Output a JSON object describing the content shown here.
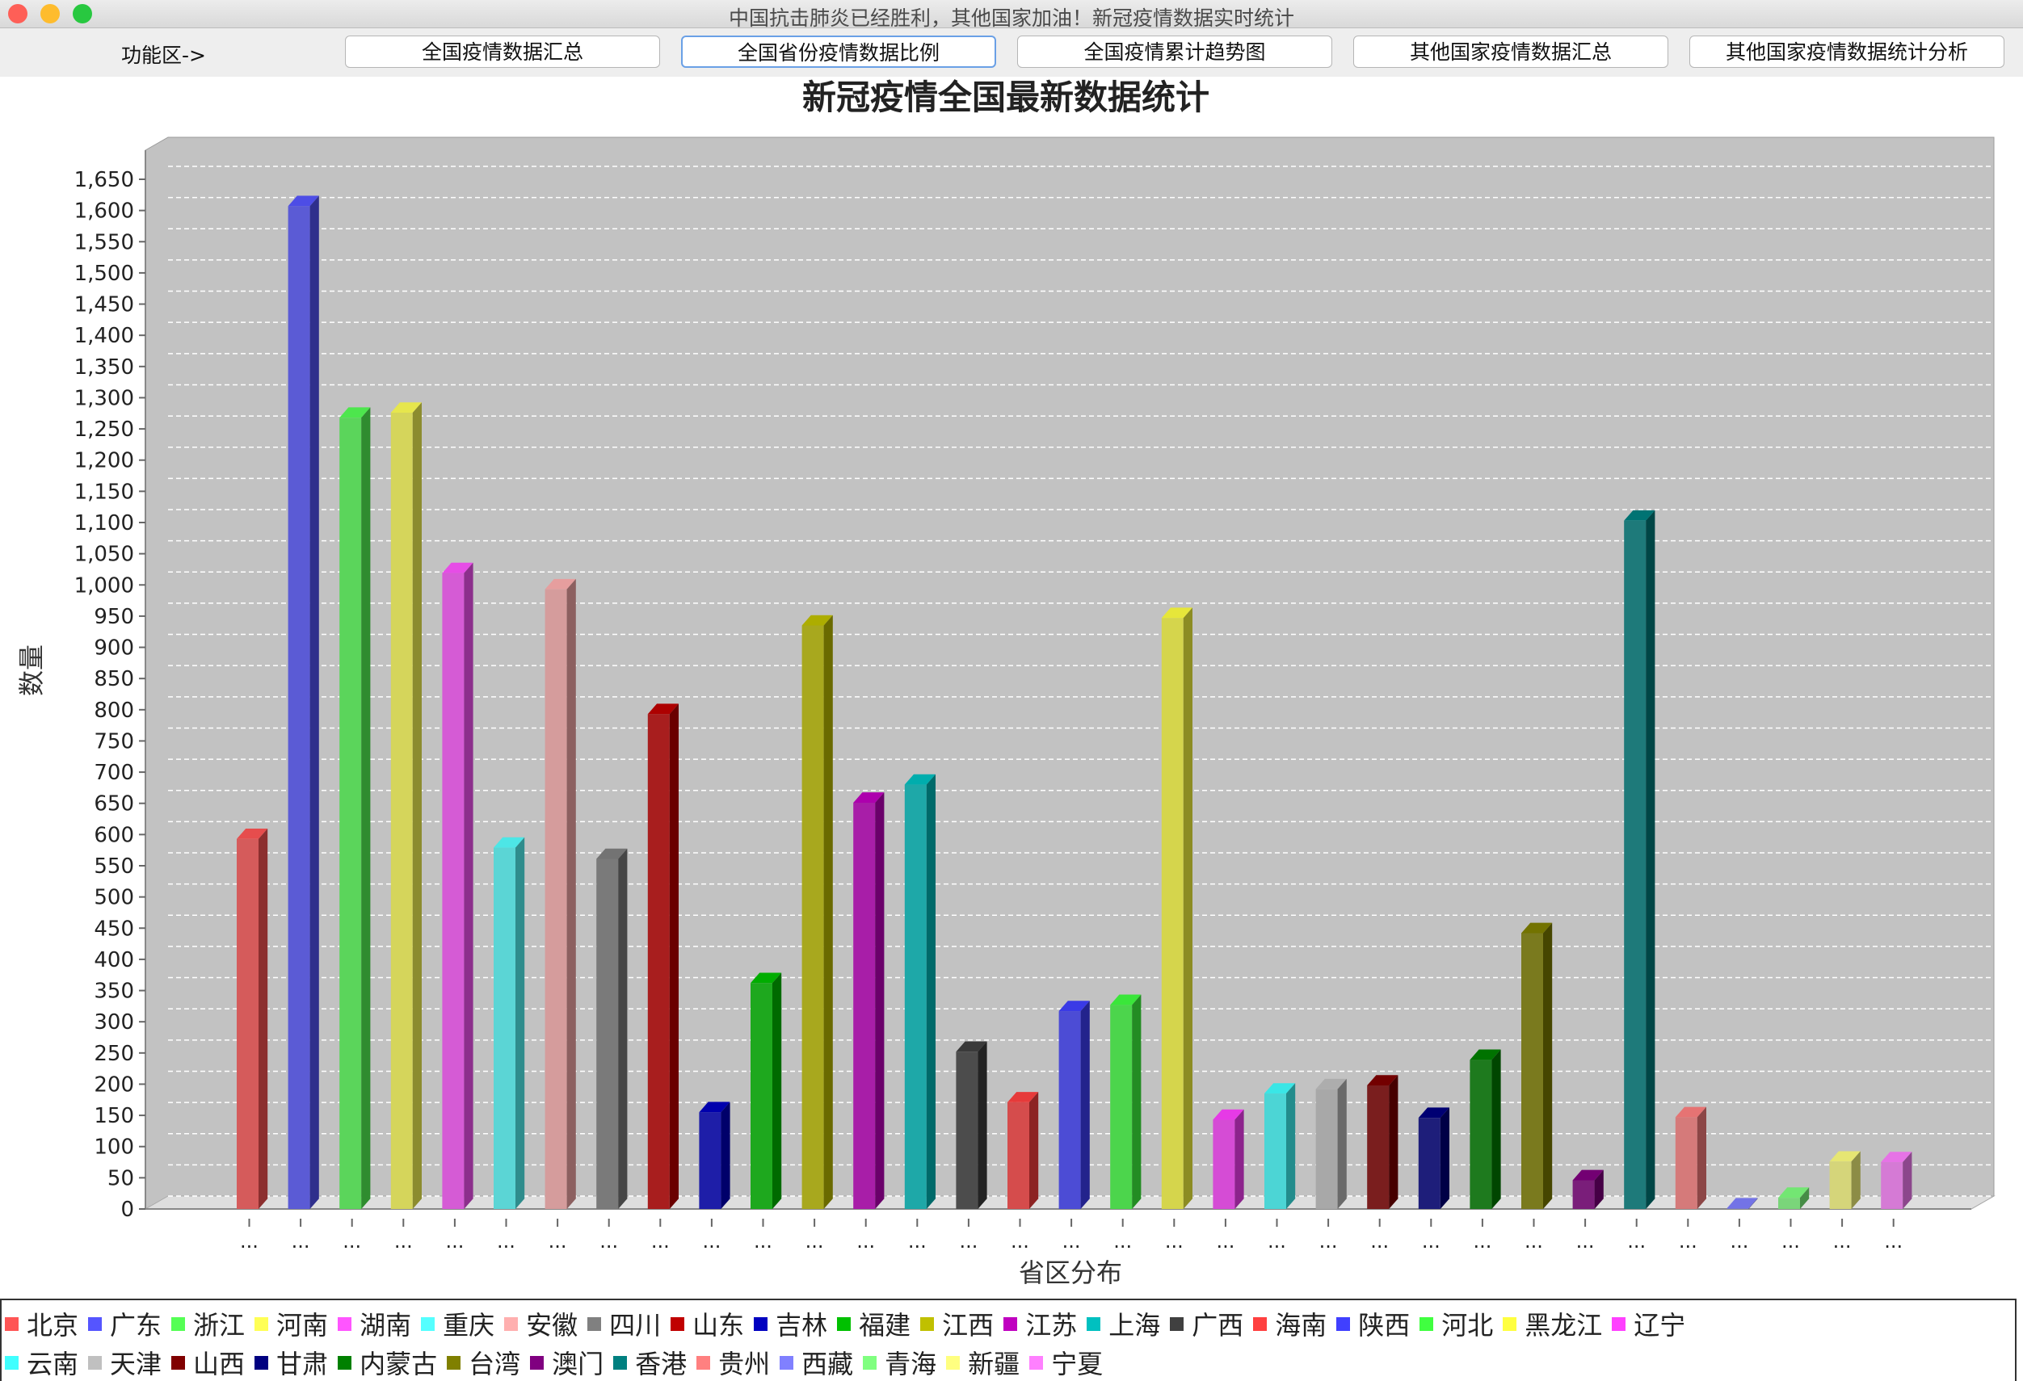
{
  "window": {
    "title": "中国抗击肺炎已经胜利，其他国家加油！新冠疫情数据实时统计"
  },
  "toolbar": {
    "label": "功能区->",
    "buttons": [
      {
        "label": "全国疫情数据汇总",
        "active": false
      },
      {
        "label": "全国省份疫情数据比例",
        "active": true
      },
      {
        "label": "全国疫情累计趋势图",
        "active": false
      },
      {
        "label": "其他国家疫情数据汇总",
        "active": false
      },
      {
        "label": "其他国家疫情数据统计分析",
        "active": false
      }
    ]
  },
  "chart_data": {
    "type": "bar",
    "title": "新冠疫情全国最新数据统计",
    "xlabel": "省区分布",
    "ylabel": "数量",
    "ylim": [
      0,
      1650
    ],
    "ytick_step": 50,
    "grid": true,
    "legend_position": "bottom",
    "tick_label": "...",
    "categories": [
      "北京",
      "广东",
      "浙江",
      "河南",
      "湖南",
      "重庆",
      "安徽",
      "四川",
      "山东",
      "吉林",
      "福建",
      "江西",
      "江苏",
      "上海",
      "广西",
      "海南",
      "陕西",
      "河北",
      "黑龙江",
      "辽宁",
      "云南",
      "天津",
      "山西",
      "甘肃",
      "内蒙古",
      "台湾",
      "澳门",
      "香港",
      "贵州",
      "西藏",
      "青海",
      "新疆",
      "宁夏"
    ],
    "values": [
      593,
      1607,
      1268,
      1276,
      1019,
      579,
      993,
      561,
      793,
      155,
      362,
      935,
      651,
      680,
      252,
      171,
      317,
      327,
      947,
      143,
      185,
      192,
      198,
      146,
      239,
      442,
      46,
      1103,
      147,
      1,
      18,
      76,
      75
    ],
    "colors": [
      "#ff5555",
      "#5555ff",
      "#55ff55",
      "#ffff55",
      "#ff55ff",
      "#55ffff",
      "#ffafaf",
      "#808080",
      "#c00000",
      "#0000c0",
      "#00c000",
      "#c0c000",
      "#c000c0",
      "#00c0c0",
      "#404040",
      "#ff4040",
      "#4040ff",
      "#40ff40",
      "#ffff40",
      "#ff40ff",
      "#40ffff",
      "#c0c0c0",
      "#800000",
      "#000080",
      "#008000",
      "#808000",
      "#800080",
      "#008080",
      "#ff8080",
      "#8080ff",
      "#80ff80",
      "#ffff80",
      "#ff80ff"
    ]
  }
}
